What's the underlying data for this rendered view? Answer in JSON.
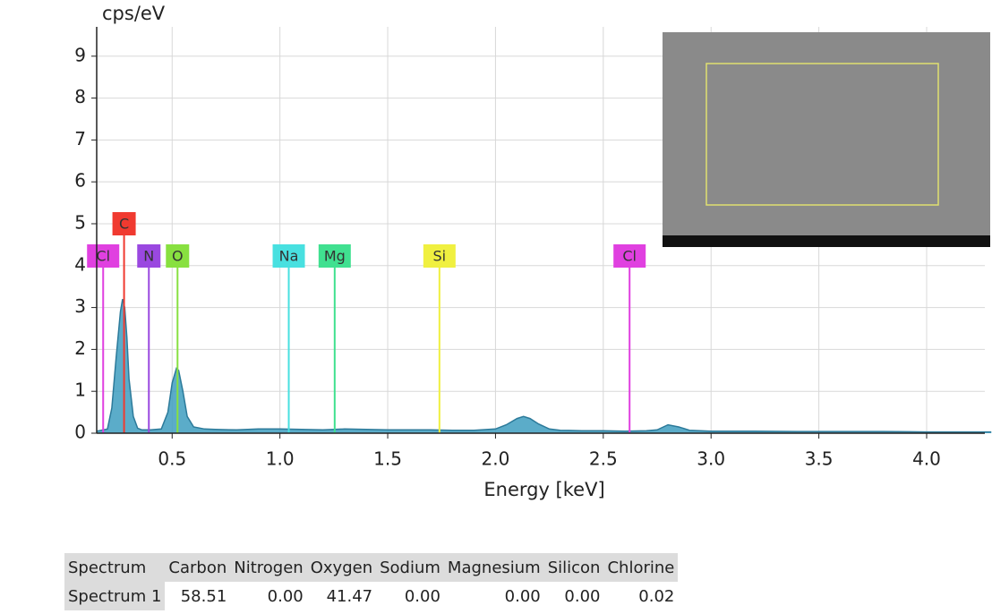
{
  "chart_data": {
    "type": "area",
    "y_label": "cps/eV",
    "x_label": "Energy [keV]",
    "x": [
      0.15,
      0.2,
      0.22,
      0.24,
      0.26,
      0.27,
      0.28,
      0.29,
      0.3,
      0.32,
      0.34,
      0.36,
      0.4,
      0.45,
      0.48,
      0.5,
      0.52,
      0.53,
      0.55,
      0.57,
      0.6,
      0.65,
      0.7,
      0.8,
      0.9,
      1.0,
      1.1,
      1.2,
      1.3,
      1.4,
      1.5,
      1.6,
      1.7,
      1.8,
      1.9,
      2.0,
      2.05,
      2.1,
      2.13,
      2.16,
      2.2,
      2.25,
      2.3,
      2.4,
      2.5,
      2.6,
      2.7,
      2.75,
      2.8,
      2.85,
      2.9,
      3.0,
      3.2,
      3.4,
      3.6,
      3.8,
      4.0,
      4.2,
      4.3
    ],
    "values": [
      0.05,
      0.1,
      0.6,
      1.8,
      2.9,
      3.2,
      3.0,
      2.3,
      1.3,
      0.4,
      0.12,
      0.08,
      0.08,
      0.1,
      0.5,
      1.2,
      1.55,
      1.5,
      1.0,
      0.4,
      0.15,
      0.1,
      0.09,
      0.08,
      0.1,
      0.1,
      0.09,
      0.08,
      0.1,
      0.09,
      0.08,
      0.08,
      0.08,
      0.07,
      0.07,
      0.1,
      0.2,
      0.35,
      0.4,
      0.35,
      0.22,
      0.1,
      0.07,
      0.06,
      0.06,
      0.05,
      0.06,
      0.08,
      0.2,
      0.15,
      0.07,
      0.05,
      0.05,
      0.04,
      0.04,
      0.04,
      0.03,
      0.03,
      0.03
    ],
    "color": "#3e9dc0",
    "xlim": [
      0.15,
      4.27
    ],
    "ylim": [
      0,
      9.7
    ],
    "xticks": [
      {
        "value": 0.5,
        "label": "0.5"
      },
      {
        "value": 1,
        "label": "1.0"
      },
      {
        "value": 1.5,
        "label": "1.5"
      },
      {
        "value": 2,
        "label": "2.0"
      },
      {
        "value": 2.5,
        "label": "2.5"
      },
      {
        "value": 3,
        "label": "3.0"
      },
      {
        "value": 3.5,
        "label": "3.5"
      },
      {
        "value": 4,
        "label": "4.0"
      }
    ],
    "yticks": [
      0,
      1,
      2,
      3,
      4,
      5,
      6,
      7,
      8,
      9
    ],
    "grid": true,
    "element_lines": [
      {
        "label": "Cl",
        "energy": 0.18,
        "color": "#e040e0"
      },
      {
        "label": "C",
        "energy": 0.277,
        "color": "#f03a30"
      },
      {
        "label": "N",
        "energy": 0.392,
        "color": "#9a48e0"
      },
      {
        "label": "O",
        "energy": 0.525,
        "color": "#88e040"
      },
      {
        "label": "Na",
        "energy": 1.041,
        "color": "#48e0e0"
      },
      {
        "label": "Mg",
        "energy": 1.254,
        "color": "#40e090"
      },
      {
        "label": "Si",
        "energy": 1.74,
        "color": "#f0f040"
      },
      {
        "label": "Cl",
        "energy": 2.622,
        "color": "#e040e0"
      }
    ]
  },
  "table": {
    "header": [
      "Spectrum",
      "Carbon",
      "Nitrogen",
      "Oxygen",
      "Sodium",
      "Magnesium",
      "Silicon",
      "Chlorine"
    ],
    "rows": [
      [
        "Spectrum 1",
        "58.51",
        "0.00",
        "41.47",
        "0.00",
        "0.00",
        "0.00",
        "0.02"
      ]
    ]
  }
}
